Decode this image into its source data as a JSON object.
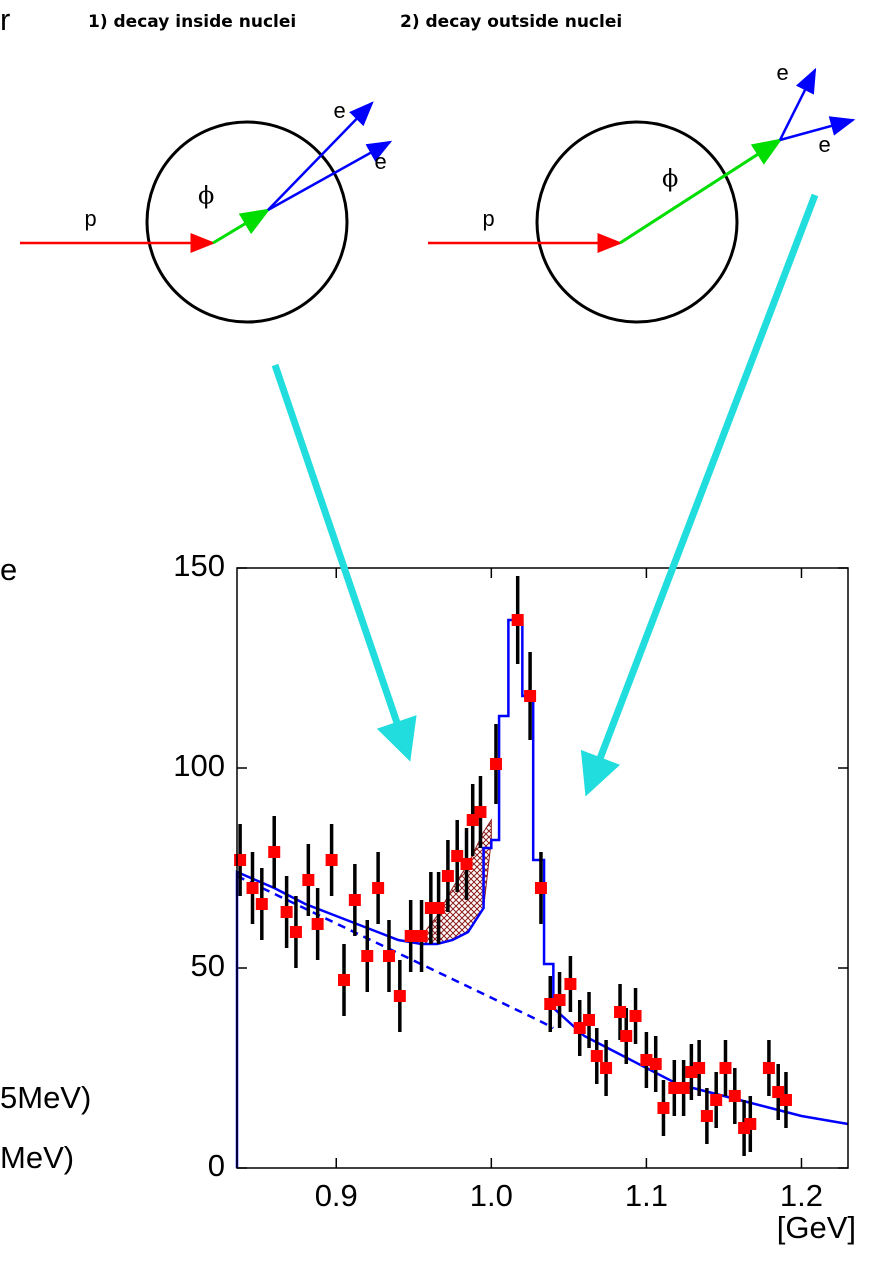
{
  "fragments": [
    "r",
    "e",
    "5MeV)",
    "MeV)"
  ],
  "diagrams": [
    {
      "title": "1) decay inside nuclei",
      "proton": "p",
      "meson": "ϕ",
      "electrons": [
        "e",
        "e"
      ]
    },
    {
      "title": "2) decay outside nuclei",
      "proton": "p",
      "meson": "ϕ",
      "electrons": [
        "e",
        "e"
      ]
    }
  ],
  "chart_data": {
    "type": "scatter",
    "color": "#ff0000",
    "error_color": "#000000",
    "x_label": "[GeV]",
    "xlim": [
      0.836,
      1.23
    ],
    "xticks": [
      0.9,
      {
        "value": 1.0,
        "label": "1.0"
      },
      1.1,
      1.2
    ],
    "ylim": [
      0,
      150
    ],
    "yticks": [
      0,
      50,
      100,
      150
    ],
    "x": [
      0.838,
      0.846,
      0.852,
      0.86,
      0.868,
      0.874,
      0.882,
      0.888,
      0.897,
      0.905,
      0.912,
      0.92,
      0.927,
      0.934,
      0.941,
      0.948,
      0.955,
      0.961,
      0.966,
      0.972,
      0.978,
      0.984,
      0.988,
      0.993,
      1.003,
      1.017,
      1.025,
      1.032,
      1.038,
      1.044,
      1.051,
      1.057,
      1.063,
      1.068,
      1.074,
      1.083,
      1.087,
      1.093,
      1.1,
      1.106,
      1.111,
      1.118,
      1.124,
      1.129,
      1.134,
      1.139,
      1.145,
      1.151,
      1.157,
      1.163,
      1.167,
      1.179,
      1.185,
      1.19
    ],
    "values": [
      77,
      70,
      66,
      79,
      64,
      59,
      72,
      61,
      77,
      47,
      67,
      53,
      70,
      53,
      43,
      58,
      58,
      65,
      65,
      73,
      78,
      76,
      87,
      89,
      101,
      137,
      118,
      70,
      41,
      42,
      46,
      35,
      37,
      28,
      25,
      39,
      33,
      38,
      27,
      26,
      15,
      20,
      20,
      24,
      25,
      13,
      17,
      25,
      18,
      10,
      11,
      25,
      19,
      17
    ],
    "errors": [
      9,
      9,
      9,
      9,
      9,
      9,
      9,
      9,
      9,
      9,
      9,
      9,
      9,
      9,
      9,
      9,
      9,
      9,
      9,
      9,
      9,
      9,
      9,
      9,
      10,
      11,
      11,
      9,
      7,
      7,
      7,
      7,
      7,
      7,
      7,
      7,
      7,
      7,
      7,
      7,
      7,
      7,
      7,
      7,
      7,
      7,
      7,
      7,
      7,
      7,
      7,
      7,
      7,
      7
    ],
    "lines": [
      {
        "style": "solid",
        "color": "#0000ff",
        "x": [
          0.836,
          0.836,
          0.86,
          0.88,
          0.9,
          0.92,
          0.94,
          0.955,
          0.965,
          0.975,
          0.985,
          0.99,
          0.995,
          0.995,
          1.0,
          1.0,
          1.005,
          1.005,
          1.011,
          1.011,
          1.02,
          1.02,
          1.027,
          1.027,
          1.034,
          1.034,
          1.04,
          1.04,
          1.06,
          1.08,
          1.1,
          1.12,
          1.14,
          1.16,
          1.18,
          1.2,
          1.23
        ],
        "values": [
          0,
          74,
          70,
          66,
          63,
          60,
          57,
          56,
          56,
          57,
          59,
          62,
          65,
          80,
          80,
          82,
          82,
          113,
          113,
          137,
          137,
          118,
          118,
          77,
          77,
          51,
          51,
          40,
          33,
          29,
          25,
          21,
          19,
          17,
          15,
          13,
          11
        ]
      },
      {
        "style": "dashed",
        "color": "#0000ff",
        "x": [
          0.836,
          1.03,
          1.04
        ],
        "values": [
          73,
          37,
          35
        ]
      }
    ],
    "area": {
      "color": "#8b1a1a",
      "x": [
        0.955,
        0.965,
        0.975,
        0.985,
        0.99,
        0.995,
        1.0
      ],
      "values": [
        58,
        63,
        70,
        76,
        80,
        84,
        87
      ],
      "base": [
        56,
        56,
        57,
        59,
        62,
        65,
        82
      ]
    }
  }
}
